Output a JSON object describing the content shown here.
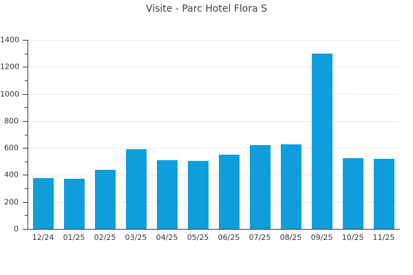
{
  "title": "Visite - Parc Hotel Flora S",
  "chart_data": {
    "type": "bar",
    "title": "Visite - Parc Hotel Flora S",
    "categories": [
      "12/24",
      "01/25",
      "02/25",
      "03/25",
      "04/25",
      "05/25",
      "06/25",
      "07/25",
      "08/25",
      "09/25",
      "10/25",
      "11/25"
    ],
    "values": [
      375,
      370,
      440,
      590,
      510,
      505,
      550,
      620,
      625,
      1300,
      525,
      520
    ],
    "xlabel": "",
    "ylabel": "",
    "ylim": [
      0,
      1400
    ],
    "yticks": [
      0,
      200,
      400,
      600,
      800,
      1000,
      1200,
      1400
    ],
    "minor_tick_interval": 100,
    "grid": "horizontal-major",
    "legend": "none",
    "colors": {
      "bar": "#0e9edb",
      "axis": "#333333",
      "grid": "#e6e6e6",
      "tick_text": "#333333",
      "title_text": "#3f3f3f",
      "background": "#ffffff"
    }
  }
}
